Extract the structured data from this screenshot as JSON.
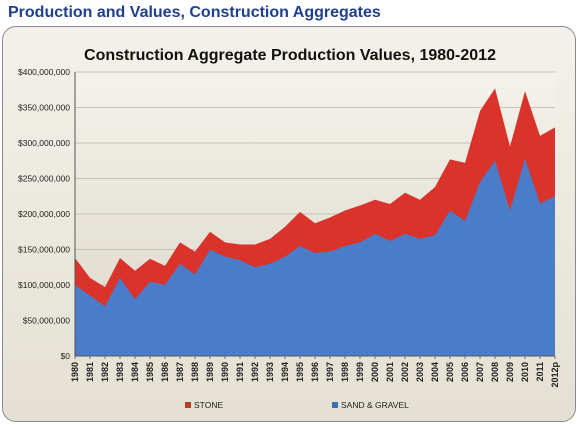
{
  "page": {
    "header": "Production and Values, Construction Aggregates"
  },
  "colors": {
    "stone": "#d9332b",
    "sand_gravel": "#4a7cc9",
    "stone_legend": "#c0392b",
    "sand_legend": "#3d6fb8",
    "header": "#1f3f8f"
  },
  "chart_data": {
    "type": "area",
    "stacked": true,
    "title": "Construction Aggregate Production Values, 1980-2012",
    "xlabel": "",
    "ylabel": "",
    "ylim": [
      0,
      400000000
    ],
    "yticks": [
      "$0",
      "$50,000,000",
      "$100,000,000",
      "$150,000,000",
      "$200,000,000",
      "$250,000,000",
      "$300,000,000",
      "$350,000,000",
      "$400,000,000"
    ],
    "grid": true,
    "legend_position": "bottom",
    "categories": [
      "1980",
      "1981",
      "1982",
      "1983",
      "1984",
      "1985",
      "1986",
      "1987",
      "1988",
      "1989",
      "1990",
      "1991",
      "1992",
      "1993",
      "1994",
      "1995",
      "1996",
      "1997",
      "1998",
      "1999",
      "2000",
      "2001",
      "2002",
      "2003",
      "2004",
      "2005",
      "2006",
      "2007",
      "2008",
      "2009",
      "2010",
      "2011",
      "2012p"
    ],
    "series": [
      {
        "name": "SAND & GRAVEL",
        "values": [
          100000000,
          85000000,
          70000000,
          110000000,
          80000000,
          105000000,
          100000000,
          130000000,
          115000000,
          150000000,
          140000000,
          135000000,
          125000000,
          130000000,
          140000000,
          155000000,
          145000000,
          147000000,
          155000000,
          160000000,
          172000000,
          162000000,
          172000000,
          165000000,
          170000000,
          205000000,
          190000000,
          245000000,
          275000000,
          205000000,
          278000000,
          215000000,
          225000000
        ]
      },
      {
        "name": "STONE",
        "values": [
          38000000,
          25000000,
          27000000,
          28000000,
          40000000,
          32000000,
          27000000,
          30000000,
          32000000,
          25000000,
          20000000,
          22000000,
          32000000,
          35000000,
          42000000,
          48000000,
          42000000,
          48000000,
          50000000,
          52000000,
          48000000,
          52000000,
          58000000,
          55000000,
          68000000,
          72000000,
          82000000,
          100000000,
          102000000,
          90000000,
          95000000,
          95000000,
          97000000
        ]
      }
    ]
  }
}
